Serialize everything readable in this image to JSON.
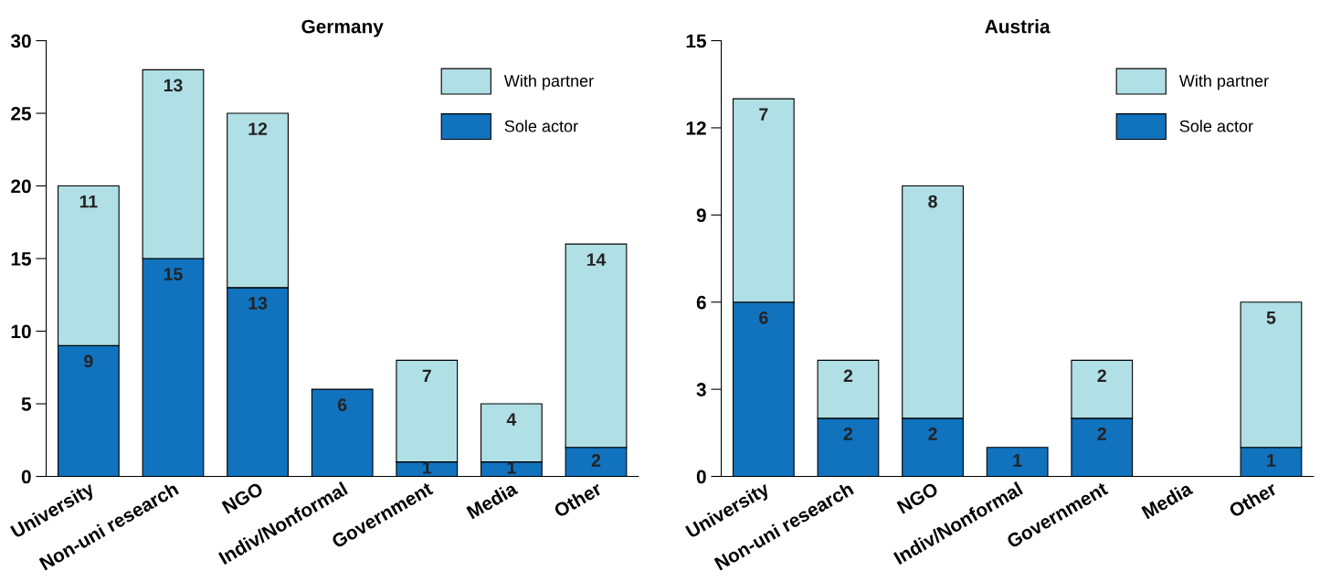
{
  "chart_data": [
    {
      "type": "bar",
      "title": "Germany",
      "stacked": true,
      "legend": "top right",
      "grid": false,
      "categories": [
        "University",
        "Non-uni research",
        "NGO",
        "Indiv/Nonformal",
        "Government",
        "Media",
        "Other"
      ],
      "ylim": [
        0,
        30
      ],
      "yticks": [
        0,
        5,
        10,
        15,
        20,
        25,
        30
      ],
      "series": [
        {
          "name": "Sole actor",
          "color": "#1172be",
          "values": [
            9,
            15,
            13,
            6,
            1,
            1,
            2
          ],
          "value_labels": [
            "9",
            "15",
            "13",
            "6",
            "1",
            "1",
            "2"
          ]
        },
        {
          "name": "With partner",
          "color": "#b0dfe5",
          "values": [
            11,
            13,
            12,
            0,
            7,
            4,
            14
          ],
          "value_labels": [
            "11",
            "13",
            "12",
            null,
            "7",
            "4",
            "14"
          ]
        }
      ]
    },
    {
      "type": "bar",
      "title": "Austria",
      "stacked": true,
      "legend": "top right",
      "grid": false,
      "categories": [
        "University",
        "Non-uni research",
        "NGO",
        "Indiv/Nonformal",
        "Government",
        "Media",
        "Other"
      ],
      "ylim": [
        0,
        15
      ],
      "yticks": [
        0,
        3,
        6,
        9,
        12,
        15
      ],
      "series": [
        {
          "name": "Sole actor",
          "color": "#1172be",
          "values": [
            6,
            2,
            2,
            1,
            2,
            0,
            1
          ],
          "value_labels": [
            "6",
            "2",
            "2",
            "1",
            "2",
            null,
            "1"
          ]
        },
        {
          "name": "With partner",
          "color": "#b0dfe5",
          "values": [
            7,
            2,
            8,
            0,
            2,
            0,
            5
          ],
          "value_labels": [
            "7",
            "2",
            "8",
            null,
            "2",
            null,
            "5"
          ]
        }
      ]
    }
  ]
}
